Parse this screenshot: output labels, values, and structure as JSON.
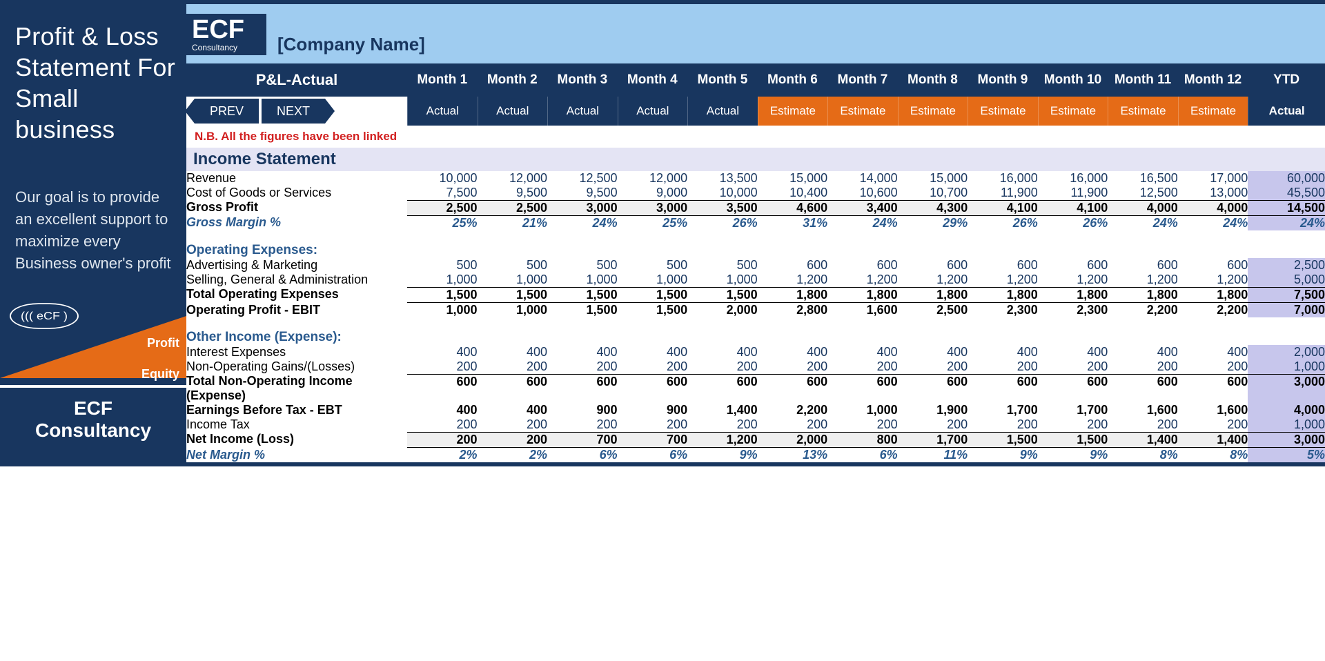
{
  "sidebar": {
    "title": "Profit & Loss Statement For Small business",
    "goal": "Our goal is to provide an excellent support to maximize every Business owner's profit",
    "badge": "((( eCF )",
    "profit": "Profit",
    "equity": "Equity",
    "footer1": "ECF",
    "footer2": "Consultancy"
  },
  "header": {
    "logoTop": "ECF",
    "logoSub": "Consultancy",
    "company": "[Company Name]",
    "tab": "P&L-Actual",
    "prev": "PREV",
    "next": "NEXT",
    "note": "N.B. All the figures have been linked",
    "months": [
      "Month 1",
      "Month 2",
      "Month 3",
      "Month 4",
      "Month 5",
      "Month 6",
      "Month 7",
      "Month 8",
      "Month 9",
      "Month 10",
      "Month 11",
      "Month 12",
      "YTD"
    ],
    "subTypes": [
      "Actual",
      "Actual",
      "Actual",
      "Actual",
      "Actual",
      "Estimate",
      "Estimate",
      "Estimate",
      "Estimate",
      "Estimate",
      "Estimate",
      "Estimate",
      "Actual"
    ]
  },
  "colors": {
    "navy": "#18365f",
    "orange": "#e56b17",
    "lightBlue": "#9fccf0",
    "ytdBg": "#c7c6ec",
    "sectionBg": "#e4e4f4",
    "noteRed": "#d22020",
    "subheadBlue": "#2a5a8e"
  },
  "table": {
    "sectionTitle": "Income Statement",
    "rows": [
      {
        "type": "data",
        "label": "Revenue",
        "vals": [
          "10,000",
          "12,000",
          "12,500",
          "12,000",
          "13,500",
          "15,000",
          "14,000",
          "15,000",
          "16,000",
          "16,000",
          "16,500",
          "17,000"
        ],
        "ytd": "60,000"
      },
      {
        "type": "data",
        "label": "Cost of Goods or Services",
        "vals": [
          "7,500",
          "9,500",
          "9,500",
          "9,000",
          "10,000",
          "10,400",
          "10,600",
          "10,700",
          "11,900",
          "11,900",
          "12,500",
          "13,000"
        ],
        "ytd": "45,500"
      },
      {
        "type": "bold",
        "label": "Gross Profit",
        "lineTop": true,
        "shade": true,
        "vals": [
          "2,500",
          "2,500",
          "3,000",
          "3,000",
          "3,500",
          "4,600",
          "3,400",
          "4,300",
          "4,100",
          "4,100",
          "4,000",
          "4,000"
        ],
        "ytd": "14,500"
      },
      {
        "type": "italic",
        "label": "Gross Margin %",
        "lineTop": true,
        "vals": [
          "25%",
          "21%",
          "24%",
          "25%",
          "26%",
          "31%",
          "24%",
          "29%",
          "26%",
          "26%",
          "24%",
          "24%"
        ],
        "ytd": "24%"
      },
      {
        "type": "spacer"
      },
      {
        "type": "subhead",
        "label": "Operating Expenses:"
      },
      {
        "type": "data",
        "label": "Advertising & Marketing",
        "vals": [
          "500",
          "500",
          "500",
          "500",
          "500",
          "600",
          "600",
          "600",
          "600",
          "600",
          "600",
          "600"
        ],
        "ytd": "2,500"
      },
      {
        "type": "data",
        "label": "Selling, General & Administration",
        "vals": [
          "1,000",
          "1,000",
          "1,000",
          "1,000",
          "1,000",
          "1,200",
          "1,200",
          "1,200",
          "1,200",
          "1,200",
          "1,200",
          "1,200"
        ],
        "ytd": "5,000"
      },
      {
        "type": "bold",
        "label": "Total Operating Expenses",
        "lineTop": true,
        "lineBottom": true,
        "vals": [
          "1,500",
          "1,500",
          "1,500",
          "1,500",
          "1,500",
          "1,800",
          "1,800",
          "1,800",
          "1,800",
          "1,800",
          "1,800",
          "1,800"
        ],
        "ytd": "7,500"
      },
      {
        "type": "bold",
        "label": "Operating Profit - EBIT",
        "vals": [
          "1,000",
          "1,000",
          "1,500",
          "1,500",
          "2,000",
          "2,800",
          "1,600",
          "2,500",
          "2,300",
          "2,300",
          "2,200",
          "2,200"
        ],
        "ytd": "7,000"
      },
      {
        "type": "spacer"
      },
      {
        "type": "subhead",
        "label": "Other Income (Expense):"
      },
      {
        "type": "data",
        "label": "Interest Expenses",
        "vals": [
          "400",
          "400",
          "400",
          "400",
          "400",
          "400",
          "400",
          "400",
          "400",
          "400",
          "400",
          "400"
        ],
        "ytd": "2,000"
      },
      {
        "type": "data",
        "label": "Non-Operating Gains/(Losses)",
        "vals": [
          "200",
          "200",
          "200",
          "200",
          "200",
          "200",
          "200",
          "200",
          "200",
          "200",
          "200",
          "200"
        ],
        "ytd": "1,000"
      },
      {
        "type": "bold",
        "label": "Total Non-Operating Income (Expense)",
        "lineTop": true,
        "vals": [
          "600",
          "600",
          "600",
          "600",
          "600",
          "600",
          "600",
          "600",
          "600",
          "600",
          "600",
          "600"
        ],
        "ytd": "3,000"
      },
      {
        "type": "bold",
        "label": "Earnings Before Tax - EBT",
        "vals": [
          "400",
          "400",
          "900",
          "900",
          "1,400",
          "2,200",
          "1,000",
          "1,900",
          "1,700",
          "1,700",
          "1,600",
          "1,600"
        ],
        "ytd": "4,000"
      },
      {
        "type": "data",
        "label": "Income Tax",
        "vals": [
          "200",
          "200",
          "200",
          "200",
          "200",
          "200",
          "200",
          "200",
          "200",
          "200",
          "200",
          "200"
        ],
        "ytd": "1,000"
      },
      {
        "type": "bold",
        "label": "Net Income (Loss)",
        "lineTop": true,
        "lineBottom": true,
        "shade": true,
        "vals": [
          "200",
          "200",
          "700",
          "700",
          "1,200",
          "2,000",
          "800",
          "1,700",
          "1,500",
          "1,500",
          "1,400",
          "1,400"
        ],
        "ytd": "3,000"
      },
      {
        "type": "italic",
        "label": "Net Margin %",
        "vals": [
          "2%",
          "2%",
          "6%",
          "6%",
          "9%",
          "13%",
          "6%",
          "11%",
          "9%",
          "9%",
          "8%",
          "8%"
        ],
        "ytd": "5%"
      }
    ]
  }
}
